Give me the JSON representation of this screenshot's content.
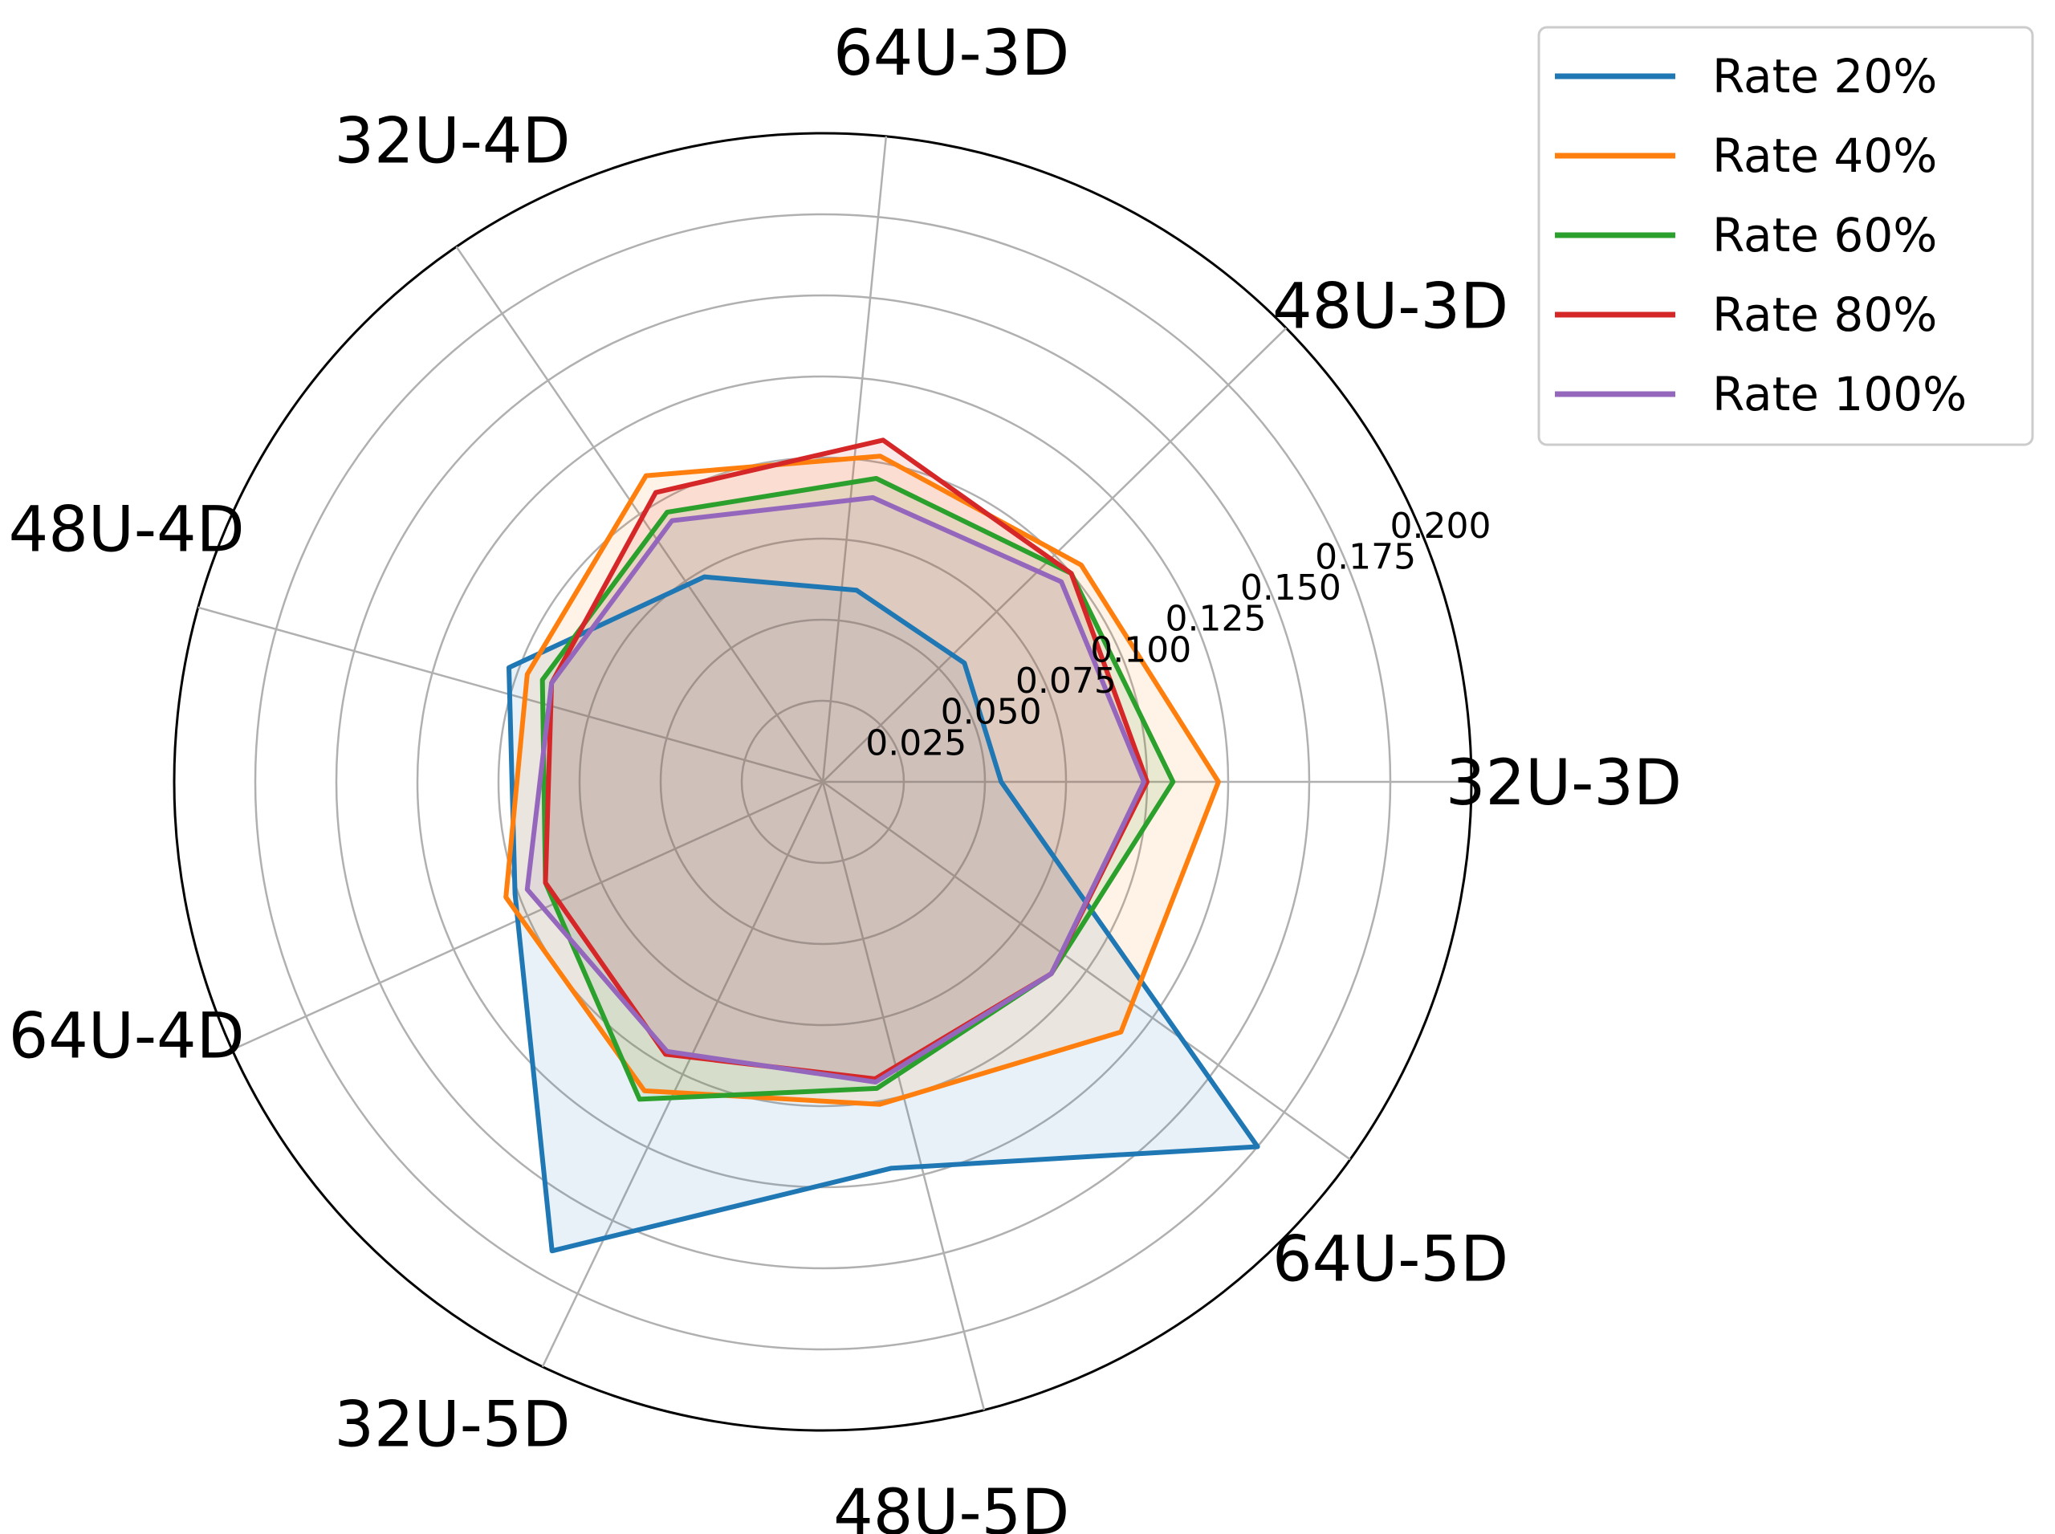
{
  "chart_data": {
    "type": "radar",
    "axes": [
      "32U-3D",
      "48U-3D",
      "64U-3D",
      "32U-4D",
      "48U-4D",
      "64U-4D",
      "32U-5D",
      "48U-5D",
      "64U-5D"
    ],
    "radial_ticks": [
      "0.025",
      "0.050",
      "0.075",
      "0.100",
      "0.125",
      "0.150",
      "0.175",
      "0.200"
    ],
    "rlim": [
      0,
      0.2
    ],
    "legend_position": "top-right",
    "series": [
      {
        "name": "Rate 20%",
        "color": "#1f77b4",
        "values": [
          0.055,
          0.057,
          0.06,
          0.073,
          0.103,
          0.101,
          0.167,
          0.121,
          0.175
        ]
      },
      {
        "name": "Rate 40%",
        "color": "#ff7f0e",
        "values": [
          0.122,
          0.104,
          0.102,
          0.109,
          0.097,
          0.104,
          0.11,
          0.101,
          0.12
        ]
      },
      {
        "name": "Rate 60%",
        "color": "#2ca02c",
        "values": [
          0.108,
          0.1,
          0.095,
          0.096,
          0.092,
          0.091,
          0.113,
          0.096,
          0.092
        ]
      },
      {
        "name": "Rate 80%",
        "color": "#d62728",
        "values": [
          0.1,
          0.1,
          0.107,
          0.103,
          0.089,
          0.091,
          0.097,
          0.093,
          0.092
        ]
      },
      {
        "name": "Rate 100%",
        "color": "#9467bd",
        "values": [
          0.099,
          0.096,
          0.089,
          0.093,
          0.089,
          0.097,
          0.096,
          0.094,
          0.092
        ]
      }
    ]
  }
}
